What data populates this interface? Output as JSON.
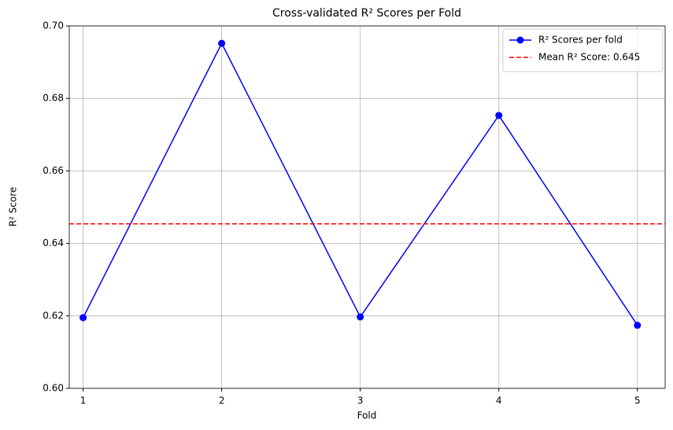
{
  "chart_data": {
    "type": "line",
    "title": "Cross-validated R² Scores per Fold",
    "xlabel": "Fold",
    "ylabel": "R² Score",
    "x": [
      1,
      2,
      3,
      4,
      5
    ],
    "series": [
      {
        "name": "R² Scores per fold",
        "color": "#0000ff",
        "values": [
          0.6195,
          0.6952,
          0.6197,
          0.6753,
          0.6174
        ]
      }
    ],
    "hline": {
      "name": "Mean R² Score: 0.645",
      "color": "#ff0000",
      "value": 0.6454
    },
    "xlim": [
      0.9,
      5.2
    ],
    "xticks": [
      1,
      2,
      3,
      4,
      5
    ],
    "ylim": [
      0.6,
      0.7
    ],
    "yticks": [
      {
        "value": 0.6,
        "label": "0.60"
      },
      {
        "value": 0.62,
        "label": "0.62"
      },
      {
        "value": 0.64,
        "label": "0.64"
      },
      {
        "value": 0.66,
        "label": "0.66"
      },
      {
        "value": 0.68,
        "label": "0.68"
      },
      {
        "value": 0.7,
        "label": "0.70"
      }
    ],
    "grid": true,
    "legend": "upper right"
  }
}
